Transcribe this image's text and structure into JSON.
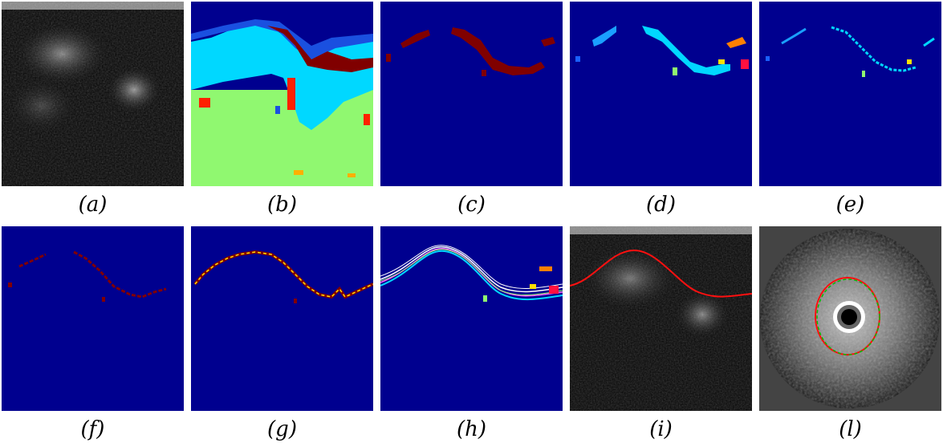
{
  "figure": {
    "captions": [
      "(a)",
      "(b)",
      "(c)",
      "(d)",
      "(e)",
      "(f)",
      "(g)",
      "(h)",
      "(i)",
      "(l)"
    ]
  },
  "colors": {
    "background_blue": "#00008f",
    "dark_red": "#800000",
    "red": "#ff2000",
    "cyan": "#00d8ff",
    "light_blue": "#1aa0ff",
    "light_green": "#90f870",
    "orange": "#ff8000",
    "yellow": "#ffe000",
    "white": "#ffffff",
    "green": "#00c000"
  }
}
